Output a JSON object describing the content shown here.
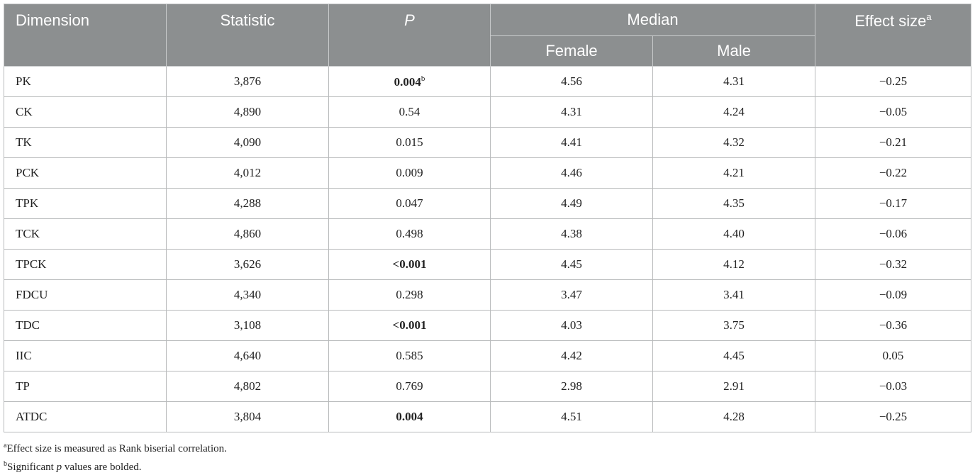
{
  "headers": {
    "dimension": "Dimension",
    "statistic": "Statistic",
    "p": "P",
    "median": "Median",
    "female": "Female",
    "male": "Male",
    "effect_size": "Effect size",
    "effect_size_mark": "a"
  },
  "rows": [
    {
      "dim": "PK",
      "stat": "3,876",
      "p": "0.004",
      "p_bold": true,
      "p_sup": "b",
      "female": "4.56",
      "male": "4.31",
      "effect": "−0.25"
    },
    {
      "dim": "CK",
      "stat": "4,890",
      "p": "0.54",
      "p_bold": false,
      "p_sup": "",
      "female": "4.31",
      "male": "4.24",
      "effect": "−0.05"
    },
    {
      "dim": "TK",
      "stat": "4,090",
      "p": "0.015",
      "p_bold": false,
      "p_sup": "",
      "female": "4.41",
      "male": "4.32",
      "effect": "−0.21"
    },
    {
      "dim": "PCK",
      "stat": "4,012",
      "p": "0.009",
      "p_bold": false,
      "p_sup": "",
      "female": "4.46",
      "male": "4.21",
      "effect": "−0.22"
    },
    {
      "dim": "TPK",
      "stat": "4,288",
      "p": "0.047",
      "p_bold": false,
      "p_sup": "",
      "female": "4.49",
      "male": "4.35",
      "effect": "−0.17"
    },
    {
      "dim": "TCK",
      "stat": "4,860",
      "p": "0.498",
      "p_bold": false,
      "p_sup": "",
      "female": "4.38",
      "male": "4.40",
      "effect": "−0.06"
    },
    {
      "dim": "TPCK",
      "stat": "3,626",
      "p": "<0.001",
      "p_bold": true,
      "p_sup": "",
      "female": "4.45",
      "male": "4.12",
      "effect": "−0.32"
    },
    {
      "dim": "FDCU",
      "stat": "4,340",
      "p": "0.298",
      "p_bold": false,
      "p_sup": "",
      "female": "3.47",
      "male": "3.41",
      "effect": "−0.09"
    },
    {
      "dim": "TDC",
      "stat": "3,108",
      "p": "<0.001",
      "p_bold": true,
      "p_sup": "",
      "female": "4.03",
      "male": "3.75",
      "effect": "−0.36"
    },
    {
      "dim": "IIC",
      "stat": "4,640",
      "p": "0.585",
      "p_bold": false,
      "p_sup": "",
      "female": "4.42",
      "male": "4.45",
      "effect": "0.05"
    },
    {
      "dim": "TP",
      "stat": "4,802",
      "p": "0.769",
      "p_bold": false,
      "p_sup": "",
      "female": "2.98",
      "male": "2.91",
      "effect": "−0.03"
    },
    {
      "dim": "ATDC",
      "stat": "3,804",
      "p": "0.004",
      "p_bold": true,
      "p_sup": "",
      "female": "4.51",
      "male": "4.28",
      "effect": "−0.25"
    }
  ],
  "footnotes": {
    "a_mark": "a",
    "a_text": "Effect size is measured as Rank biserial correlation.",
    "b_mark": "b",
    "b_before": "Significant ",
    "b_italic": "p",
    "b_after": " values are bolded."
  }
}
